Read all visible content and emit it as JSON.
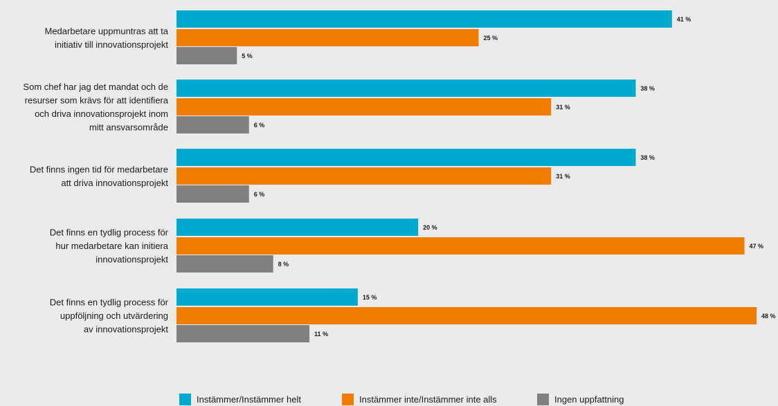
{
  "chart_data": {
    "type": "bar",
    "orientation": "horizontal",
    "categories": [
      [
        "Medarbetare uppmuntras att ta",
        "initiativ till innovationsprojekt"
      ],
      [
        "Som chef har jag det mandat och de",
        "resurser som krävs för att identifiera",
        "och driva innovationsprojekt inom",
        "mitt ansvarsområde"
      ],
      [
        "Det finns ingen tid för medarbetare",
        "att driva innovationsprojekt"
      ],
      [
        "Det finns en tydlig process för",
        "hur medarbetare kan initiera",
        "innovationsprojekt"
      ],
      [
        "Det finns en tydlig process för",
        "uppföljning och utvärdering",
        "av innovationsprojekt"
      ]
    ],
    "series": [
      {
        "name": "Instämmer/Instämmer helt",
        "color": "#00aacf",
        "values": [
          41,
          38,
          38,
          20,
          15
        ]
      },
      {
        "name": "Instämmer inte/Instämmer inte alls",
        "color": "#f07c00",
        "values": [
          25,
          31,
          31,
          47,
          48
        ]
      },
      {
        "name": "Ingen uppfattning",
        "color": "#808080",
        "values": [
          5,
          6,
          6,
          8,
          11
        ]
      }
    ],
    "value_suffix": " %",
    "xlim": [
      0,
      48
    ],
    "grid": false,
    "legend_position": "bottom"
  }
}
